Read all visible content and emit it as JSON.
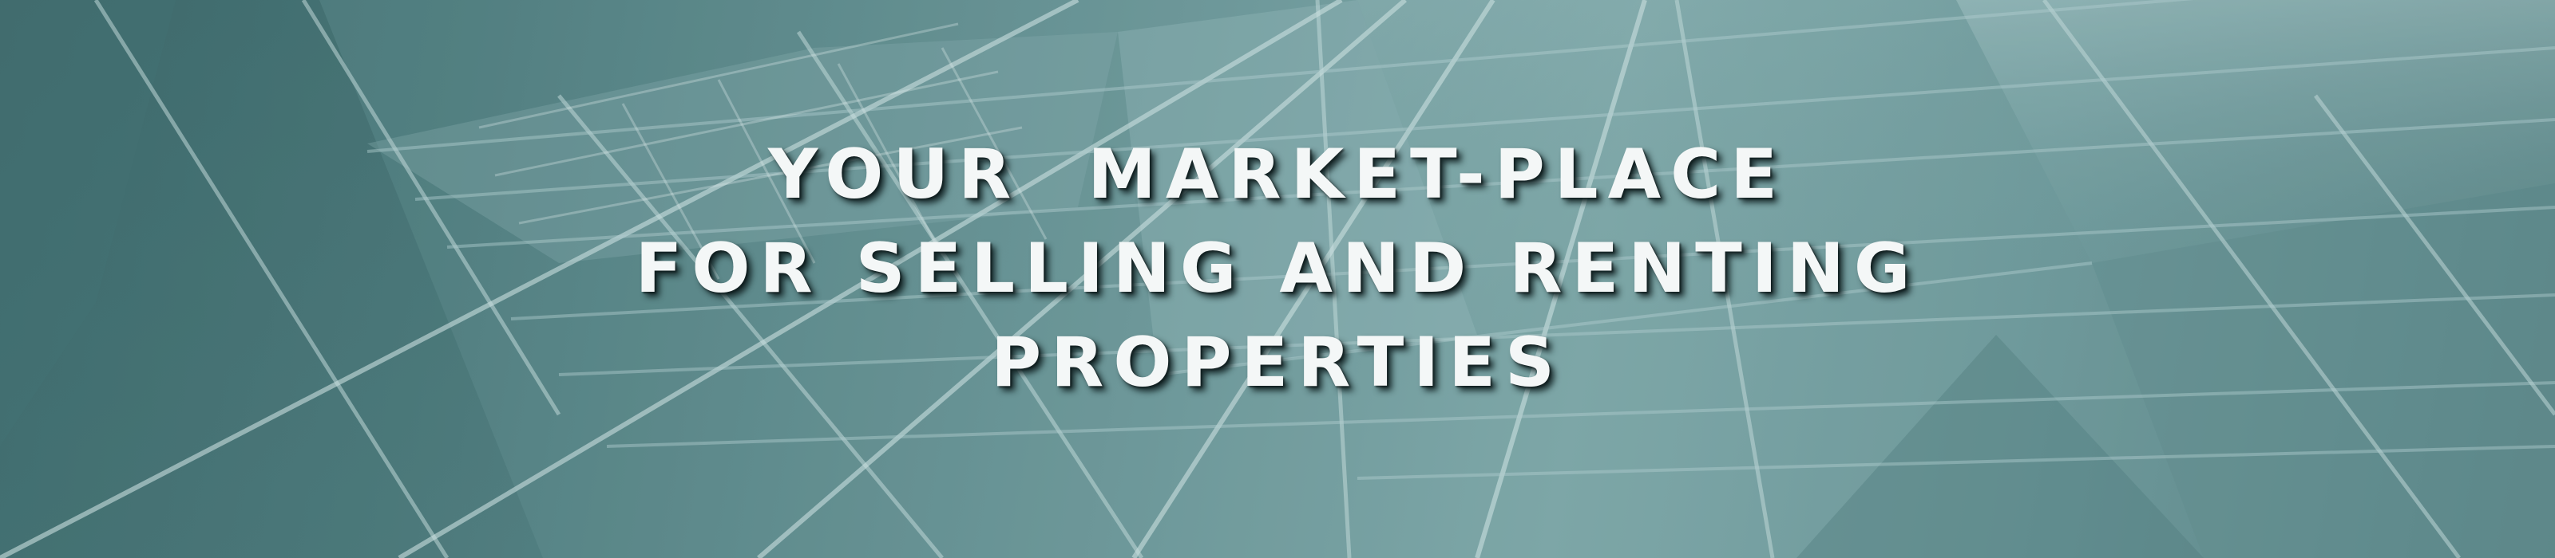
{
  "banner": {
    "headline_lines": [
      "YOUR  MARKET-PLACE",
      "FOR SELLING AND RENTING",
      "PROPERTIES"
    ],
    "background": "building-glass-facade-image",
    "colors": {
      "tint": "#4f7e80",
      "text": "#f4f7f7"
    }
  }
}
